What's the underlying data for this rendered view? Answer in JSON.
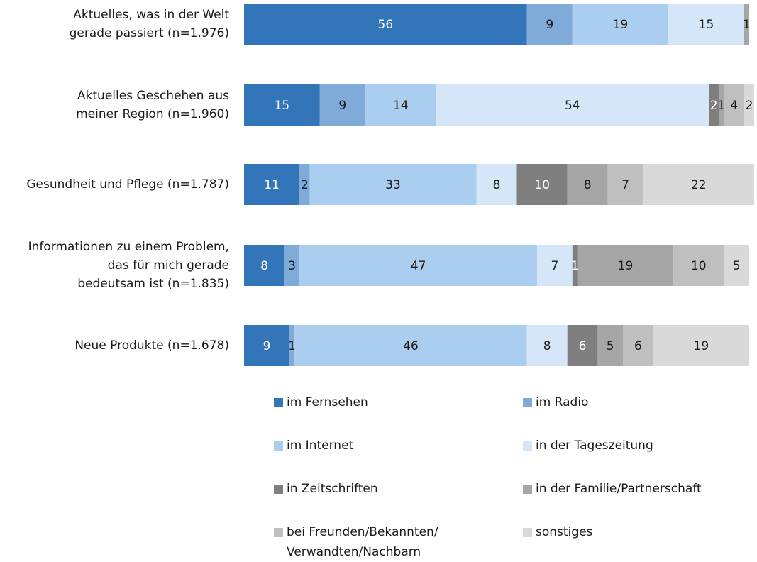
{
  "chart_data": {
    "type": "stacked-bar-horizontal",
    "categories": [
      [
        "Aktuelles, was in der Welt",
        "gerade passiert (n=1.976)"
      ],
      [
        "Aktuelles Geschehen aus",
        "meiner Region (n=1.960)"
      ],
      [
        "Gesundheit und Pflege (n=1.787)"
      ],
      [
        "Informationen zu einem Problem,",
        "das für mich gerade",
        "bedeutsam ist (n=1.835)"
      ],
      [
        "Neue Produkte (n=1.678)"
      ]
    ],
    "series": [
      {
        "name": "im Fernsehen",
        "color": "#3375b9",
        "values": [
          56,
          15,
          11,
          8,
          9
        ]
      },
      {
        "name": "im Radio",
        "color": "#80aad7",
        "values": [
          9,
          9,
          2,
          3,
          1
        ]
      },
      {
        "name": "im Internet",
        "color": "#abcdef",
        "values": [
          19,
          14,
          33,
          47,
          46
        ]
      },
      {
        "name": "in der Tageszeitung",
        "color": "#d4e6f8",
        "values": [
          15,
          54,
          8,
          7,
          8
        ]
      },
      {
        "name": "in Zeitschriften",
        "color": "#7f7f7f",
        "values": [
          null,
          2,
          10,
          1,
          6
        ]
      },
      {
        "name": "in der Familie/Partnerschaft",
        "color": "#a6a6a6",
        "values": [
          1,
          1,
          8,
          19,
          5
        ]
      },
      {
        "name": "bei Freunden/Bekannten/ Verwandten/Nachbarn",
        "color": "#bfbfbf",
        "values": [
          null,
          4,
          7,
          10,
          6
        ]
      },
      {
        "name": "sonstiges",
        "color": "#d9d9d9",
        "values": [
          null,
          2,
          22,
          5,
          19
        ]
      }
    ]
  }
}
